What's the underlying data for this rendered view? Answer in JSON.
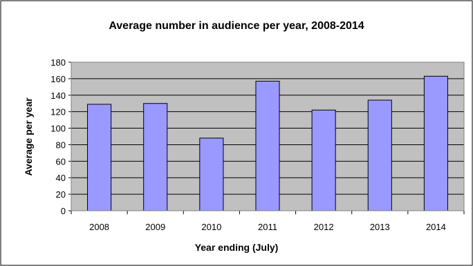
{
  "chart_data": {
    "type": "bar",
    "title": "Average number in audience per year, 2008-2014",
    "xlabel": "Year ending (July)",
    "ylabel": "Average per year",
    "categories": [
      "2008",
      "2009",
      "2010",
      "2011",
      "2012",
      "2013",
      "2014"
    ],
    "values": [
      129,
      130,
      88,
      157,
      122,
      134,
      163
    ],
    "ylim": [
      0,
      180
    ],
    "yticks": [
      0,
      20,
      40,
      60,
      80,
      100,
      120,
      140,
      160,
      180
    ],
    "grid": true,
    "legend": "none",
    "colors": {
      "bar_fill": "#9999ff",
      "bar_stroke": "#000000",
      "plot_background": "#c0c0c0",
      "gridline": "#000000",
      "chart_border": "#000000"
    }
  }
}
